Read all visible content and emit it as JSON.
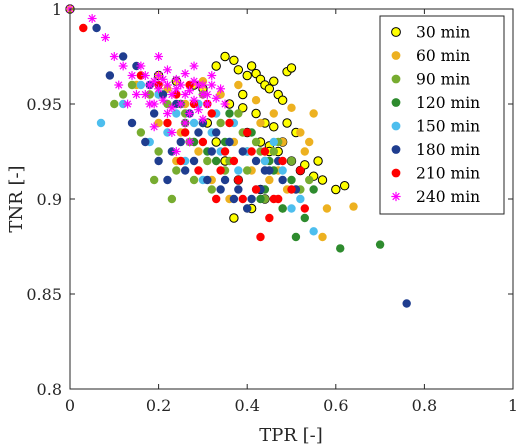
{
  "chart_data": {
    "type": "scatter",
    "xlabel": "TPR [-]",
    "ylabel": "TNR [-]",
    "xlim": [
      0,
      1
    ],
    "ylim": [
      0.8,
      1
    ],
    "xticks": [
      "0",
      "0.2",
      "0.4",
      "0.6",
      "0.8",
      "1"
    ],
    "yticks": [
      "0.8",
      "0.85",
      "0.9",
      "0.95",
      "1"
    ],
    "grid": false,
    "legend_position": "top-right",
    "series": [
      {
        "name": "30 min",
        "color": "#ffff00",
        "edge": "#000000",
        "marker": "circle-outlined",
        "x": [
          0.0,
          0.2,
          0.24,
          0.28,
          0.3,
          0.33,
          0.35,
          0.37,
          0.38,
          0.4,
          0.41,
          0.42,
          0.43,
          0.44,
          0.45,
          0.46,
          0.47,
          0.48,
          0.49,
          0.5,
          0.36,
          0.39,
          0.42,
          0.44,
          0.46,
          0.4,
          0.43,
          0.45,
          0.47,
          0.5,
          0.52,
          0.55,
          0.57,
          0.6,
          0.62,
          0.56,
          0.53,
          0.48,
          0.44,
          0.41,
          0.38,
          0.35,
          0.33,
          0.31,
          0.37,
          0.49,
          0.51,
          0.45,
          0.43,
          0.39
        ],
        "y": [
          1.0,
          0.965,
          0.962,
          0.96,
          0.958,
          0.97,
          0.975,
          0.973,
          0.968,
          0.965,
          0.97,
          0.966,
          0.963,
          0.96,
          0.958,
          0.962,
          0.955,
          0.952,
          0.967,
          0.969,
          0.95,
          0.948,
          0.945,
          0.94,
          0.938,
          0.935,
          0.93,
          0.928,
          0.925,
          0.92,
          0.915,
          0.912,
          0.91,
          0.905,
          0.907,
          0.92,
          0.918,
          0.93,
          0.9,
          0.895,
          0.91,
          0.92,
          0.93,
          0.94,
          0.89,
          0.94,
          0.935,
          0.925,
          0.905,
          0.955
        ]
      },
      {
        "name": "60 min",
        "color": "#edb120",
        "marker": "circle",
        "x": [
          0.15,
          0.18,
          0.22,
          0.26,
          0.3,
          0.34,
          0.38,
          0.42,
          0.46,
          0.5,
          0.54,
          0.58,
          0.64,
          0.2,
          0.25,
          0.29,
          0.33,
          0.37,
          0.41,
          0.45,
          0.49,
          0.53,
          0.57,
          0.32,
          0.36,
          0.4,
          0.44,
          0.48,
          0.52,
          0.28,
          0.24,
          0.43,
          0.47,
          0.51,
          0.55
        ],
        "y": [
          0.96,
          0.955,
          0.958,
          0.95,
          0.962,
          0.955,
          0.96,
          0.952,
          0.945,
          0.948,
          0.93,
          0.895,
          0.896,
          0.94,
          0.935,
          0.925,
          0.92,
          0.93,
          0.915,
          0.91,
          0.905,
          0.925,
          0.88,
          0.91,
          0.9,
          0.895,
          0.92,
          0.93,
          0.935,
          0.93,
          0.92,
          0.94,
          0.915,
          0.905,
          0.945
        ]
      },
      {
        "name": "90 min",
        "color": "#77ac30",
        "marker": "circle",
        "x": [
          0.1,
          0.14,
          0.18,
          0.22,
          0.26,
          0.3,
          0.34,
          0.38,
          0.42,
          0.46,
          0.5,
          0.54,
          0.16,
          0.2,
          0.24,
          0.28,
          0.32,
          0.36,
          0.4,
          0.44,
          0.48,
          0.52,
          0.27,
          0.31,
          0.35,
          0.39,
          0.43,
          0.47,
          0.23,
          0.19,
          0.12
        ],
        "y": [
          0.95,
          0.96,
          0.955,
          0.95,
          0.945,
          0.955,
          0.94,
          0.945,
          0.93,
          0.925,
          0.92,
          0.91,
          0.935,
          0.925,
          0.915,
          0.91,
          0.905,
          0.92,
          0.915,
          0.9,
          0.895,
          0.905,
          0.93,
          0.92,
          0.915,
          0.935,
          0.925,
          0.93,
          0.9,
          0.91,
          0.955
        ]
      },
      {
        "name": "120 min",
        "color": "#2e8b2e",
        "marker": "circle",
        "x": [
          0.2,
          0.25,
          0.3,
          0.35,
          0.4,
          0.45,
          0.5,
          0.55,
          0.61,
          0.7,
          0.28,
          0.33,
          0.38,
          0.43,
          0.48,
          0.53,
          0.36,
          0.41,
          0.46,
          0.51,
          0.31,
          0.26,
          0.44
        ],
        "y": [
          0.955,
          0.95,
          0.94,
          0.93,
          0.925,
          0.92,
          0.91,
          0.905,
          0.874,
          0.876,
          0.93,
          0.92,
          0.91,
          0.9,
          0.895,
          0.89,
          0.945,
          0.935,
          0.915,
          0.88,
          0.925,
          0.94,
          0.905
        ]
      },
      {
        "name": "150 min",
        "color": "#4dbeee",
        "marker": "circle",
        "x": [
          0.07,
          0.12,
          0.16,
          0.2,
          0.24,
          0.28,
          0.32,
          0.36,
          0.4,
          0.44,
          0.48,
          0.52,
          0.55,
          0.18,
          0.22,
          0.26,
          0.3,
          0.34,
          0.38,
          0.42,
          0.46,
          0.5,
          0.29,
          0.33,
          0.37
        ],
        "y": [
          0.94,
          0.95,
          0.96,
          0.955,
          0.945,
          0.94,
          0.935,
          0.93,
          0.925,
          0.92,
          0.915,
          0.9,
          0.883,
          0.93,
          0.935,
          0.92,
          0.91,
          0.925,
          0.915,
          0.905,
          0.93,
          0.895,
          0.95,
          0.945,
          0.94
        ]
      },
      {
        "name": "180 min",
        "color": "#1f3d8f",
        "marker": "circle",
        "x": [
          0.06,
          0.09,
          0.12,
          0.15,
          0.18,
          0.21,
          0.24,
          0.27,
          0.3,
          0.33,
          0.36,
          0.39,
          0.42,
          0.45,
          0.48,
          0.51,
          0.76,
          0.14,
          0.17,
          0.2,
          0.23,
          0.26,
          0.29,
          0.32,
          0.35,
          0.38,
          0.41,
          0.44,
          0.47,
          0.25,
          0.28,
          0.31,
          0.34,
          0.37,
          0.4,
          0.43,
          0.22,
          0.19
        ],
        "y": [
          0.99,
          0.965,
          0.975,
          0.97,
          0.96,
          0.955,
          0.95,
          0.945,
          0.94,
          0.935,
          0.93,
          0.925,
          0.92,
          0.915,
          0.91,
          0.905,
          0.845,
          0.94,
          0.93,
          0.92,
          0.925,
          0.915,
          0.935,
          0.925,
          0.91,
          0.905,
          0.9,
          0.915,
          0.92,
          0.93,
          0.92,
          0.91,
          0.905,
          0.9,
          0.895,
          0.905,
          0.91,
          0.945
        ]
      },
      {
        "name": "210 min",
        "color": "#ff0000",
        "marker": "circle",
        "x": [
          0.03,
          0.16,
          0.2,
          0.24,
          0.28,
          0.32,
          0.36,
          0.4,
          0.44,
          0.48,
          0.52,
          0.53,
          0.22,
          0.26,
          0.3,
          0.34,
          0.38,
          0.42,
          0.46,
          0.5,
          0.25,
          0.29,
          0.33,
          0.37,
          0.41,
          0.45,
          0.27,
          0.31,
          0.35,
          0.39,
          0.43,
          0.47
        ],
        "y": [
          0.99,
          0.965,
          0.96,
          0.955,
          0.95,
          0.945,
          0.94,
          0.935,
          0.925,
          0.92,
          0.915,
          0.895,
          0.94,
          0.935,
          0.93,
          0.915,
          0.91,
          0.905,
          0.9,
          0.905,
          0.92,
          0.915,
          0.9,
          0.92,
          0.925,
          0.89,
          0.96,
          0.95,
          0.925,
          0.9,
          0.88,
          0.9
        ]
      },
      {
        "name": "240 min",
        "color": "#ff00ff",
        "marker": "star",
        "x": [
          0.0,
          0.05,
          0.08,
          0.1,
          0.12,
          0.14,
          0.16,
          0.17,
          0.18,
          0.19,
          0.2,
          0.21,
          0.22,
          0.23,
          0.24,
          0.25,
          0.26,
          0.27,
          0.28,
          0.29,
          0.3,
          0.31,
          0.32,
          0.33,
          0.34,
          0.35,
          0.17,
          0.19,
          0.21,
          0.23,
          0.25,
          0.27,
          0.29,
          0.31,
          0.2,
          0.22,
          0.24,
          0.26,
          0.28,
          0.3,
          0.18,
          0.22,
          0.26,
          0.3,
          0.15,
          0.19,
          0.23,
          0.27,
          0.24,
          0.11,
          0.13,
          0.28,
          0.32,
          0.2
        ],
        "y": [
          1.0,
          0.995,
          0.985,
          0.975,
          0.97,
          0.965,
          0.97,
          0.965,
          0.96,
          0.962,
          0.958,
          0.963,
          0.96,
          0.955,
          0.958,
          0.96,
          0.955,
          0.957,
          0.952,
          0.96,
          0.955,
          0.95,
          0.96,
          0.953,
          0.958,
          0.95,
          0.955,
          0.95,
          0.952,
          0.948,
          0.95,
          0.945,
          0.947,
          0.955,
          0.965,
          0.968,
          0.963,
          0.966,
          0.962,
          0.96,
          0.95,
          0.945,
          0.94,
          0.942,
          0.955,
          0.938,
          0.935,
          0.93,
          0.925,
          0.96,
          0.95,
          0.97,
          0.965,
          0.975
        ]
      }
    ]
  }
}
